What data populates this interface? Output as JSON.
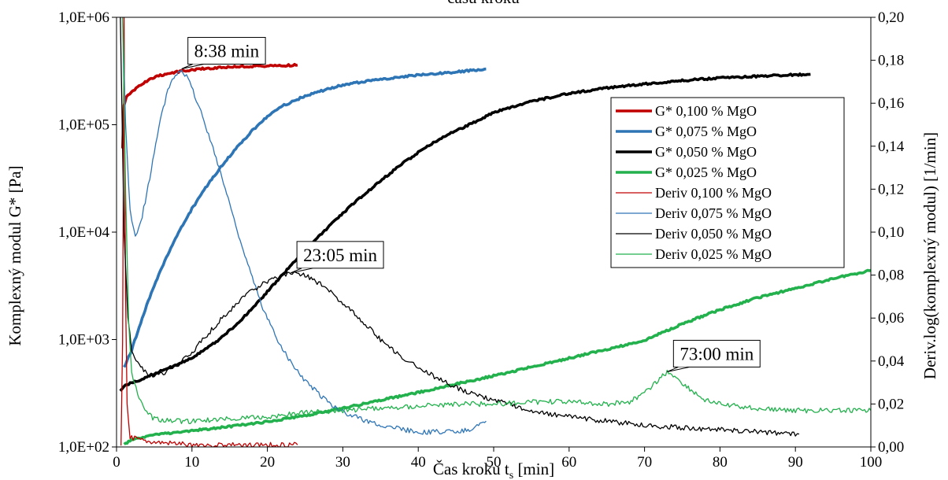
{
  "chart_data": {
    "type": "line",
    "title": "času kroku",
    "xlabel_prefix": "Čas kroku t",
    "xlabel_sub": "s",
    "xlabel_suffix": " [min]",
    "ylabel_left": "Komplexný modul G* [Pa]",
    "ylabel_right": "Deriv.log(komplexný modul) [1/min]",
    "x_axis": {
      "min": 0,
      "max": 100,
      "ticks": [
        0,
        10,
        20,
        30,
        40,
        50,
        60,
        70,
        80,
        90,
        100
      ],
      "tick_labels": [
        "0",
        "10",
        "20",
        "30",
        "40",
        "50",
        "60",
        "70",
        "80",
        "90",
        "100"
      ]
    },
    "y_left": {
      "scale": "log",
      "min": 100,
      "max": 1000000,
      "ticks": [
        100,
        1000,
        10000,
        100000,
        1000000
      ],
      "tick_labels": [
        "1,0E+02",
        "1,0E+03",
        "1,0E+04",
        "1,0E+05",
        "1,0E+06"
      ]
    },
    "y_right": {
      "scale": "linear",
      "min": 0,
      "max": 0.2,
      "ticks": [
        0,
        0.02,
        0.04,
        0.06,
        0.08,
        0.1,
        0.12,
        0.14,
        0.16,
        0.18,
        0.2
      ],
      "tick_labels": [
        "0,00",
        "0,02",
        "0,04",
        "0,06",
        "0,08",
        "0,10",
        "0,12",
        "0,14",
        "0,16",
        "0,18",
        "0,20"
      ]
    },
    "grid": false,
    "legend_position": "upper-right",
    "series": [
      {
        "name": "G* 0,100 % MgO",
        "axis": "left",
        "color": "#c00000",
        "thick": true,
        "points": [
          [
            0.8,
            60000
          ],
          [
            1.0,
            150000
          ],
          [
            1.3,
            180000
          ],
          [
            2,
            200000
          ],
          [
            3,
            230000
          ],
          [
            4,
            255000
          ],
          [
            5,
            275000
          ],
          [
            6,
            290000
          ],
          [
            8,
            310000
          ],
          [
            10,
            325000
          ],
          [
            12,
            335000
          ],
          [
            15,
            345000
          ],
          [
            18,
            350000
          ],
          [
            20,
            352000
          ],
          [
            22,
            356000
          ],
          [
            24,
            360000
          ]
        ]
      },
      {
        "name": "G* 0,075 % MgO",
        "axis": "left",
        "color": "#2e75b6",
        "thick": true,
        "points": [
          [
            1,
            550
          ],
          [
            2,
            800
          ],
          [
            3,
            1300
          ],
          [
            4,
            2100
          ],
          [
            5,
            3200
          ],
          [
            6,
            4700
          ],
          [
            7,
            6700
          ],
          [
            8,
            9200
          ],
          [
            9,
            12500
          ],
          [
            10,
            16500
          ],
          [
            12,
            27000
          ],
          [
            14,
            42000
          ],
          [
            16,
            62000
          ],
          [
            18,
            88000
          ],
          [
            20,
            120000
          ],
          [
            22,
            150000
          ],
          [
            25,
            185000
          ],
          [
            28,
            215000
          ],
          [
            30,
            235000
          ],
          [
            35,
            265000
          ],
          [
            40,
            290000
          ],
          [
            45,
            310000
          ],
          [
            49,
            330000
          ]
        ]
      },
      {
        "name": "G* 0,050 % MgO",
        "axis": "left",
        "color": "#000000",
        "thick": true,
        "points": [
          [
            0.5,
            330
          ],
          [
            1,
            370
          ],
          [
            3,
            420
          ],
          [
            5,
            480
          ],
          [
            8,
            580
          ],
          [
            10,
            680
          ],
          [
            12,
            830
          ],
          [
            14,
            1050
          ],
          [
            16,
            1400
          ],
          [
            18,
            1950
          ],
          [
            20,
            2800
          ],
          [
            22,
            4000
          ],
          [
            24,
            5700
          ],
          [
            26,
            8000
          ],
          [
            28,
            11000
          ],
          [
            30,
            15000
          ],
          [
            32,
            20000
          ],
          [
            35,
            30000
          ],
          [
            38,
            44000
          ],
          [
            40,
            55000
          ],
          [
            42,
            68000
          ],
          [
            45,
            88000
          ],
          [
            48,
            110000
          ],
          [
            50,
            130000
          ],
          [
            55,
            165000
          ],
          [
            60,
            195000
          ],
          [
            65,
            220000
          ],
          [
            70,
            240000
          ],
          [
            75,
            258000
          ],
          [
            80,
            272000
          ],
          [
            85,
            283000
          ],
          [
            90,
            292000
          ],
          [
            92,
            295000
          ]
        ]
      },
      {
        "name": "G* 0,025 % MgO",
        "axis": "left",
        "color": "#22b14c",
        "thick": true,
        "points": [
          [
            1,
            105
          ],
          [
            2,
            118
          ],
          [
            5,
            130
          ],
          [
            10,
            142
          ],
          [
            15,
            155
          ],
          [
            20,
            172
          ],
          [
            25,
            196
          ],
          [
            30,
            230
          ],
          [
            35,
            272
          ],
          [
            40,
            322
          ],
          [
            45,
            385
          ],
          [
            50,
            460
          ],
          [
            55,
            555
          ],
          [
            60,
            670
          ],
          [
            65,
            810
          ],
          [
            70,
            980
          ],
          [
            75,
            1400
          ],
          [
            80,
            1900
          ],
          [
            85,
            2450
          ],
          [
            90,
            3000
          ],
          [
            95,
            3700
          ],
          [
            100,
            4400
          ]
        ]
      },
      {
        "name": "Deriv 0,100 % MgO",
        "axis": "right",
        "color": "#c00000",
        "thick": false,
        "points": [
          [
            0.6,
            0.0
          ],
          [
            0.8,
            0.05
          ],
          [
            1.0,
            0.2
          ],
          [
            1.1,
            0.13
          ],
          [
            1.2,
            0.07
          ],
          [
            1.4,
            0.02
          ],
          [
            1.8,
            0.005
          ],
          [
            3,
            0.003
          ],
          [
            5,
            0.002
          ],
          [
            10,
            0.001
          ],
          [
            15,
            0.001
          ],
          [
            20,
            0.001
          ],
          [
            24,
            0.001
          ]
        ]
      },
      {
        "name": "Deriv 0,075 % MgO",
        "axis": "right",
        "color": "#2e75b6",
        "thick": false,
        "points": [
          [
            0.8,
            0.2
          ],
          [
            1.2,
            0.15
          ],
          [
            1.8,
            0.11
          ],
          [
            2.5,
            0.097
          ],
          [
            3.2,
            0.104
          ],
          [
            4,
            0.118
          ],
          [
            5,
            0.137
          ],
          [
            6,
            0.155
          ],
          [
            7,
            0.168
          ],
          [
            8,
            0.174
          ],
          [
            8.6,
            0.176
          ],
          [
            9.5,
            0.171
          ],
          [
            11,
            0.158
          ],
          [
            13,
            0.137
          ],
          [
            15,
            0.113
          ],
          [
            17,
            0.089
          ],
          [
            19,
            0.068
          ],
          [
            21,
            0.052
          ],
          [
            23,
            0.04
          ],
          [
            25,
            0.031
          ],
          [
            27,
            0.024
          ],
          [
            29,
            0.018
          ],
          [
            31,
            0.015
          ],
          [
            33,
            0.012
          ],
          [
            35,
            0.01
          ],
          [
            38,
            0.008
          ],
          [
            40,
            0.007
          ],
          [
            42,
            0.007
          ],
          [
            45,
            0.007
          ],
          [
            47,
            0.008
          ],
          [
            49,
            0.012
          ]
        ]
      },
      {
        "name": "Deriv 0,050 % MgO",
        "axis": "right",
        "color": "#000000",
        "thick": false,
        "points": [
          [
            0.5,
            0.2
          ],
          [
            1,
            0.1
          ],
          [
            1.5,
            0.06
          ],
          [
            2,
            0.045
          ],
          [
            3,
            0.038
          ],
          [
            4,
            0.034
          ],
          [
            5,
            0.033
          ],
          [
            6,
            0.034
          ],
          [
            8,
            0.038
          ],
          [
            10,
            0.044
          ],
          [
            12,
            0.052
          ],
          [
            14,
            0.06
          ],
          [
            16,
            0.067
          ],
          [
            18,
            0.073
          ],
          [
            20,
            0.077
          ],
          [
            22,
            0.08
          ],
          [
            23.1,
            0.081
          ],
          [
            25,
            0.08
          ],
          [
            27,
            0.076
          ],
          [
            29,
            0.07
          ],
          [
            31,
            0.064
          ],
          [
            33,
            0.057
          ],
          [
            35,
            0.05
          ],
          [
            37,
            0.044
          ],
          [
            40,
            0.037
          ],
          [
            43,
            0.031
          ],
          [
            46,
            0.026
          ],
          [
            50,
            0.022
          ],
          [
            55,
            0.017
          ],
          [
            60,
            0.014
          ],
          [
            65,
            0.012
          ],
          [
            70,
            0.01
          ],
          [
            75,
            0.009
          ],
          [
            80,
            0.008
          ],
          [
            85,
            0.007
          ],
          [
            90,
            0.006
          ],
          [
            90.5,
            0.006
          ]
        ]
      },
      {
        "name": "Deriv 0,025 % MgO",
        "axis": "right",
        "color": "#22b14c",
        "thick": false,
        "points": [
          [
            0.8,
            0.2
          ],
          [
            1.2,
            0.12
          ],
          [
            1.6,
            0.06
          ],
          [
            2,
            0.035
          ],
          [
            3,
            0.022
          ],
          [
            4,
            0.016
          ],
          [
            5,
            0.013
          ],
          [
            8,
            0.012
          ],
          [
            10,
            0.012
          ],
          [
            15,
            0.013
          ],
          [
            20,
            0.014
          ],
          [
            25,
            0.016
          ],
          [
            30,
            0.017
          ],
          [
            35,
            0.018
          ],
          [
            40,
            0.019
          ],
          [
            45,
            0.02
          ],
          [
            50,
            0.02
          ],
          [
            55,
            0.021
          ],
          [
            60,
            0.021
          ],
          [
            65,
            0.02
          ],
          [
            68,
            0.021
          ],
          [
            70,
            0.025
          ],
          [
            72,
            0.032
          ],
          [
            73,
            0.035
          ],
          [
            74,
            0.033
          ],
          [
            76,
            0.027
          ],
          [
            78,
            0.022
          ],
          [
            80,
            0.02
          ],
          [
            85,
            0.018
          ],
          [
            90,
            0.017
          ],
          [
            95,
            0.017
          ],
          [
            100,
            0.017
          ]
        ]
      }
    ],
    "annotations": [
      {
        "text": "8:38 min",
        "x": 8.63,
        "axis": "right",
        "y": 0.176
      },
      {
        "text": "23:05 min",
        "x": 23.08,
        "axis": "right",
        "y": 0.081
      },
      {
        "text": "73:00 min",
        "x": 73.0,
        "axis": "right",
        "y": 0.035
      }
    ]
  }
}
